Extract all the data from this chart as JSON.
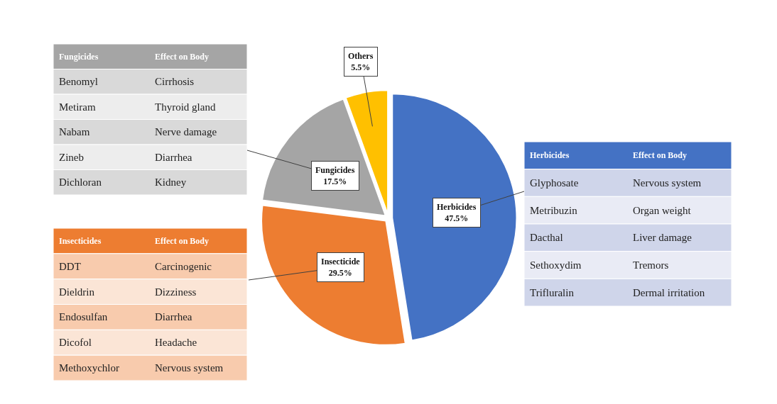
{
  "chart_data": {
    "type": "pie",
    "categories": [
      "Herbicides",
      "Insecticide",
      "Fungicides",
      "Others"
    ],
    "values": [
      47.5,
      29.5,
      17.5,
      5.5
    ],
    "colors": [
      "#4472c4",
      "#ed7d31",
      "#a5a5a5",
      "#ffc000"
    ],
    "value_labels": [
      "47.5%",
      "29.5%",
      "17.5%",
      "5.5%"
    ],
    "legend": false,
    "annotations": [
      "Fungicides",
      "Effect on Body",
      "Benomyl",
      "Cirrhosis",
      "Metiram",
      "Thyroid gland",
      "Nabam",
      "Nerve damage",
      "Zineb",
      "Diarrhea",
      "Dichloran",
      "Kidney",
      "Insecticides",
      "Effect on Body",
      "DDT",
      "Carcinogenic",
      "Dieldrin",
      "Dizziness",
      "Endosulfan",
      "Diarrhea",
      "Dicofol",
      "Headache",
      "Methoxychlor",
      "Nervous system",
      "Herbicides",
      "Effect on Body",
      "Glyphosate",
      "Nervous system",
      "Metribuzin",
      "Organ weight",
      "Dacthal",
      "Liver damage",
      "Sethoxydim",
      "Tremors",
      "Trifluralin",
      "Dermal irritation"
    ]
  }
}
